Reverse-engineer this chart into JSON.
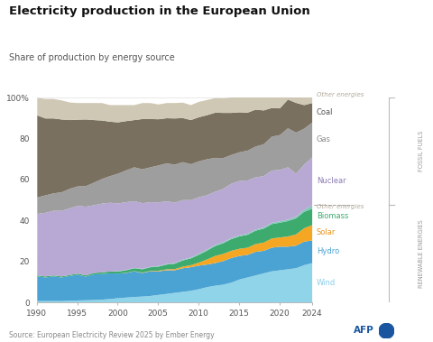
{
  "title": "Electricity production in the European Union",
  "subtitle": "Share of production by energy source",
  "source": "Source: European Electricity Review 2025 by Ember Energy",
  "years": [
    1990,
    1991,
    1992,
    1993,
    1994,
    1995,
    1996,
    1997,
    1998,
    1999,
    2000,
    2001,
    2002,
    2003,
    2004,
    2005,
    2006,
    2007,
    2008,
    2009,
    2010,
    2011,
    2012,
    2013,
    2014,
    2015,
    2016,
    2017,
    2018,
    2019,
    2020,
    2021,
    2022,
    2023,
    2024
  ],
  "series": {
    "Wind": [
      1.0,
      1.0,
      1.0,
      1.0,
      1.2,
      1.3,
      1.4,
      1.5,
      1.7,
      2.0,
      2.4,
      2.7,
      3.0,
      3.2,
      3.5,
      4.0,
      4.5,
      5.0,
      5.5,
      6.0,
      6.8,
      7.8,
      8.5,
      9.0,
      10.0,
      11.5,
      12.5,
      13.5,
      14.5,
      15.5,
      16.0,
      16.5,
      17.0,
      18.5,
      19.5
    ],
    "Hydro": [
      12.0,
      11.5,
      12.0,
      11.5,
      12.0,
      12.5,
      11.5,
      12.5,
      12.5,
      12.5,
      12.0,
      12.0,
      12.5,
      11.5,
      12.0,
      11.5,
      11.5,
      11.0,
      11.5,
      11.5,
      11.5,
      11.0,
      11.0,
      11.5,
      12.0,
      11.5,
      11.0,
      11.5,
      11.0,
      11.5,
      11.5,
      11.0,
      11.0,
      11.5,
      11.0
    ],
    "Solar": [
      0.0,
      0.0,
      0.0,
      0.0,
      0.0,
      0.0,
      0.0,
      0.0,
      0.0,
      0.0,
      0.0,
      0.1,
      0.1,
      0.2,
      0.2,
      0.3,
      0.5,
      0.6,
      0.8,
      1.0,
      1.5,
      2.5,
      3.5,
      3.5,
      3.5,
      3.5,
      3.5,
      3.8,
      4.0,
      4.5,
      4.5,
      5.0,
      5.5,
      6.5,
      7.5
    ],
    "Biomass": [
      0.5,
      0.5,
      0.5,
      0.5,
      0.5,
      0.6,
      0.6,
      0.7,
      0.8,
      0.9,
      1.0,
      1.2,
      1.4,
      1.6,
      1.8,
      2.0,
      2.3,
      2.6,
      3.0,
      3.3,
      3.8,
      4.3,
      4.8,
      5.2,
      5.7,
      6.0,
      6.3,
      6.5,
      6.8,
      7.0,
      7.2,
      7.5,
      7.8,
      8.0,
      8.0
    ],
    "Other_renew": [
      0.0,
      0.0,
      0.0,
      0.0,
      0.0,
      0.0,
      0.0,
      0.0,
      0.0,
      0.0,
      0.2,
      0.2,
      0.2,
      0.2,
      0.2,
      0.3,
      0.3,
      0.3,
      0.4,
      0.4,
      0.5,
      0.5,
      0.5,
      0.5,
      0.5,
      0.5,
      0.5,
      0.5,
      0.6,
      0.6,
      0.7,
      0.7,
      0.8,
      1.0,
      1.5
    ],
    "Nuclear": [
      30.0,
      31.0,
      31.5,
      32.0,
      32.5,
      33.0,
      33.5,
      33.0,
      33.5,
      33.5,
      33.0,
      33.0,
      32.5,
      32.0,
      31.5,
      31.0,
      30.5,
      29.5,
      29.0,
      28.0,
      27.5,
      26.5,
      26.0,
      26.0,
      26.5,
      26.5,
      26.0,
      25.5,
      25.0,
      25.5,
      25.0,
      25.5,
      21.0,
      22.0,
      23.5
    ],
    "Gas": [
      8.0,
      8.5,
      8.5,
      9.0,
      9.5,
      9.5,
      10.0,
      11.0,
      12.0,
      13.0,
      14.5,
      15.5,
      16.5,
      16.5,
      17.0,
      18.0,
      18.5,
      18.5,
      18.5,
      17.5,
      17.5,
      17.5,
      16.5,
      15.0,
      14.0,
      14.0,
      14.5,
      15.0,
      15.5,
      16.5,
      17.0,
      19.0,
      20.0,
      17.5,
      17.0
    ],
    "Coal": [
      40.0,
      37.5,
      36.5,
      35.5,
      33.5,
      32.5,
      32.5,
      30.5,
      28.5,
      26.5,
      25.0,
      24.0,
      23.0,
      24.5,
      23.5,
      22.5,
      22.0,
      22.5,
      21.5,
      21.5,
      21.5,
      21.5,
      22.0,
      22.0,
      20.5,
      19.5,
      18.5,
      18.0,
      16.5,
      14.0,
      13.0,
      14.0,
      14.5,
      11.5,
      9.5
    ],
    "Other_fossil": [
      8.5,
      9.5,
      9.5,
      9.3,
      8.6,
      8.1,
      8.0,
      8.3,
      8.5,
      8.1,
      8.4,
      7.8,
      7.3,
      7.8,
      7.8,
      7.2,
      7.4,
      7.5,
      7.5,
      7.3,
      7.5,
      7.4,
      7.1,
      7.1,
      7.5,
      7.5,
      7.7,
      7.7,
      7.7,
      7.4,
      7.1,
      6.8,
      7.4,
      7.5,
      7.5
    ]
  },
  "colors": {
    "Wind": "#8FD4E8",
    "Hydro": "#4BA3D3",
    "Solar": "#F5A623",
    "Biomass": "#3DAA6E",
    "Other_renew": "#7EC8B8",
    "Nuclear": "#B8A9D4",
    "Gas": "#9E9E9E",
    "Coal": "#7A7060",
    "Other_fossil": "#CFC8B5"
  },
  "ylabel_right_top": "FOSSIL FUELS",
  "ylabel_right_bottom": "RENEWABLE ENERGIES",
  "background_color": "#ffffff",
  "plot_bg_color": "#ffffff",
  "ylim": [
    0,
    100
  ],
  "xlim": [
    1990,
    2024
  ],
  "xticks": [
    1990,
    1995,
    2000,
    2005,
    2010,
    2015,
    2020,
    2024
  ],
  "yticks": [
    0,
    20,
    40,
    60,
    80,
    100
  ]
}
